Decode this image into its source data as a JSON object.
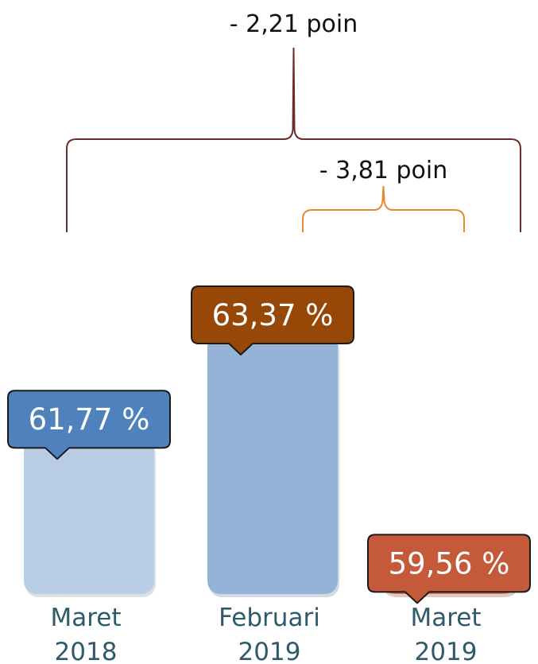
{
  "chart_data": {
    "type": "bar",
    "categories": [
      {
        "line1": "Maret",
        "line2": "2018"
      },
      {
        "line1": "Februari",
        "line2": "2019"
      },
      {
        "line1": "Maret",
        "line2": "2019"
      }
    ],
    "values": [
      61.77,
      63.37,
      59.56
    ],
    "value_labels": [
      "61,77 %",
      "63,37 %",
      "59,56 %"
    ],
    "bar_colors": [
      "#b9cde4",
      "#95b3d7",
      "#d9735b"
    ],
    "label_colors": [
      "#4f81bd",
      "#974806",
      "#c55a3b"
    ],
    "annotations": [
      {
        "text": "- 2,21 poin",
        "from": 0,
        "to": 2,
        "color": "#6b2d2d"
      },
      {
        "text": "- 3,81 poin",
        "from": 1,
        "to": 2,
        "color": "#e8892f"
      }
    ],
    "title": "",
    "xlabel": "",
    "ylabel": ""
  }
}
